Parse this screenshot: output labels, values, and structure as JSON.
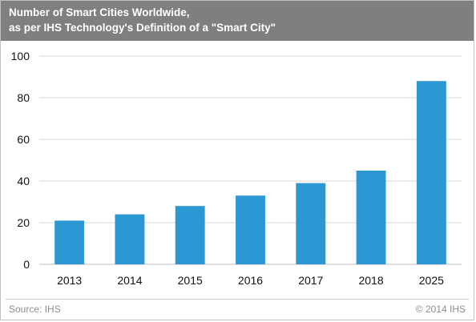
{
  "header": {
    "title_line1": "Number of Smart Cities Worldwide,",
    "title_line2": "as per IHS Technology's Definition of a \"Smart City\""
  },
  "footer": {
    "source": "Source: IHS",
    "copyright": "© 2014 IHS"
  },
  "colors": {
    "header_bg": "#7f7f7f",
    "bar": "#2b98d4",
    "grid": "#d9d9d9",
    "footer_text": "#8c8c8c"
  },
  "chart_data": {
    "type": "bar",
    "title": "Number of Smart Cities Worldwide, as per IHS Technology's Definition of a \"Smart City\"",
    "categories": [
      "2013",
      "2014",
      "2015",
      "2016",
      "2017",
      "2018",
      "2025"
    ],
    "values": [
      21,
      24,
      28,
      33,
      39,
      45,
      88
    ],
    "ylim": [
      0,
      100
    ],
    "yticks": [
      0,
      20,
      40,
      60,
      80,
      100
    ],
    "xlabel": "",
    "ylabel": "",
    "grid": true,
    "legend": "none"
  }
}
